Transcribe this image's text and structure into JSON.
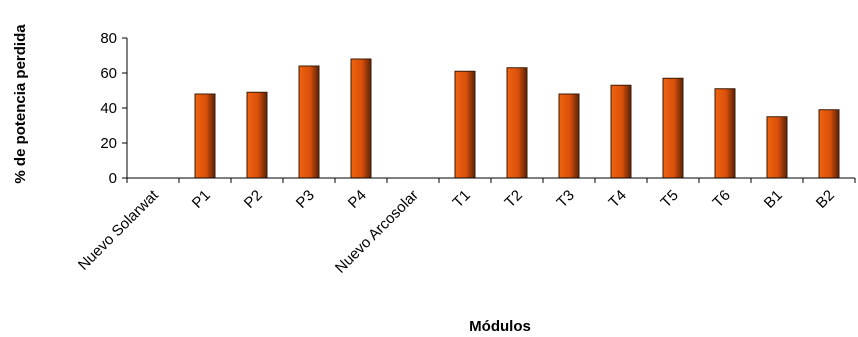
{
  "chart_data": {
    "type": "bar",
    "categories": [
      "Nuevo Solarwat",
      "P1",
      "P2",
      "P3",
      "P4",
      "Nuevo Arcosolar",
      "T1",
      "T2",
      "T3",
      "T4",
      "T5",
      "T6",
      "B1",
      "B2"
    ],
    "values": [
      0,
      48,
      49,
      64,
      68,
      0,
      61,
      63,
      48,
      53,
      57,
      51,
      35,
      39
    ],
    "xlabel": "Módulos",
    "ylabel": "% de potencia perdida",
    "ylim": [
      0,
      80
    ],
    "yticks": [
      "0",
      "20",
      "40",
      "60",
      "80"
    ],
    "grid": false,
    "legend": "none",
    "bar_color": "#f0630f",
    "bar_shade_color": "#5a2208"
  }
}
